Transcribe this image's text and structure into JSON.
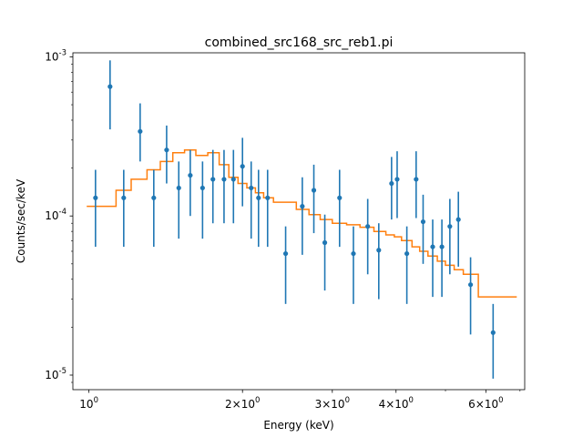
{
  "chart_data": {
    "type": "scatter",
    "title": "combined_src168_src_reb1.pi",
    "xlabel": "Energy (keV)",
    "ylabel": "Counts/sec/keV",
    "xscale": "log",
    "yscale": "log",
    "xlim": [
      0.93,
      7.15
    ],
    "ylim": [
      8.1e-06,
      0.00106
    ],
    "grid": false,
    "x_ticks": [
      {
        "value": 1,
        "label": "10^0"
      },
      {
        "value": 2,
        "label": "2×10^0"
      },
      {
        "value": 3,
        "label": "3×10^0"
      },
      {
        "value": 4,
        "label": "4×10^0"
      },
      {
        "value": 6,
        "label": "6×10^0"
      }
    ],
    "y_ticks": [
      {
        "value": 1e-05,
        "label": "10^-5"
      },
      {
        "value": 0.0001,
        "label": "10^-4"
      },
      {
        "value": 0.001,
        "label": "10^-3"
      }
    ],
    "colors": {
      "data": "#1f77b4",
      "model": "#ff7f0e"
    },
    "series": [
      {
        "kind": "errorbar",
        "x": [
          1.03,
          1.1,
          1.17,
          1.26,
          1.34,
          1.42,
          1.5,
          1.58,
          1.67,
          1.75,
          1.84,
          1.92,
          2.0,
          2.08,
          2.15,
          2.24,
          2.43,
          2.62,
          2.76,
          2.9,
          3.1,
          3.3,
          3.52,
          3.7,
          3.92,
          4.02,
          4.2,
          4.38,
          4.52,
          4.72,
          4.92,
          5.1,
          5.3,
          5.6,
          6.2
        ],
        "y": [
          0.00013,
          0.00065,
          0.00013,
          0.00034,
          0.00013,
          0.00026,
          0.00015,
          0.00018,
          0.00015,
          0.00017,
          0.00017,
          0.00017,
          0.000205,
          0.00015,
          0.00013,
          0.00013,
          5.8e-05,
          0.000115,
          0.000145,
          6.8e-05,
          0.00013,
          5.8e-05,
          8.6e-05,
          6.1e-05,
          0.00016,
          0.00017,
          5.8e-05,
          0.00017,
          9.2e-05,
          6.4e-05,
          6.4e-05,
          8.6e-05,
          9.5e-05,
          3.7e-05,
          1.85e-05
        ],
        "ylo": [
          6.4e-05,
          0.00035,
          6.4e-05,
          0.00022,
          6.4e-05,
          0.00016,
          7.2e-05,
          0.0001,
          7.2e-05,
          9e-05,
          9e-05,
          9e-05,
          0.000115,
          7.2e-05,
          6.4e-05,
          6.4e-05,
          2.8e-05,
          5.7e-05,
          7.8e-05,
          3.4e-05,
          6.4e-05,
          2.8e-05,
          4.3e-05,
          3e-05,
          9.5e-05,
          9.7e-05,
          2.8e-05,
          9.7e-05,
          5e-05,
          3.1e-05,
          3.1e-05,
          4.3e-05,
          4.8e-05,
          1.8e-05,
          9.5e-06
        ],
        "yhi": [
          0.000195,
          0.00095,
          0.000195,
          0.00051,
          0.000195,
          0.00037,
          0.00022,
          0.00026,
          0.00022,
          0.00026,
          0.00026,
          0.00026,
          0.00031,
          0.00022,
          0.000195,
          0.000195,
          8.6e-05,
          0.000175,
          0.00021,
          0.000102,
          0.000195,
          8.6e-05,
          0.000128,
          9e-05,
          0.000235,
          0.000255,
          8.6e-05,
          0.000255,
          0.000136,
          9.5e-05,
          9.5e-05,
          0.000128,
          0.000142,
          5.5e-05,
          2.8e-05
        ]
      },
      {
        "kind": "step",
        "x": [
          0.99,
          1.07,
          1.13,
          1.21,
          1.3,
          1.38,
          1.46,
          1.54,
          1.62,
          1.71,
          1.8,
          1.88,
          1.96,
          2.04,
          2.12,
          2.2,
          2.3,
          2.55,
          2.7,
          2.84,
          3.0,
          3.2,
          3.4,
          3.62,
          3.82,
          3.97,
          4.1,
          4.3,
          4.45,
          4.62,
          4.82,
          5.0,
          5.2,
          5.42,
          5.8,
          6.9
        ],
        "y": [
          0.000115,
          0.000115,
          0.000145,
          0.00017,
          0.000195,
          0.00022,
          0.00025,
          0.00026,
          0.00024,
          0.00025,
          0.00021,
          0.000175,
          0.00016,
          0.00015,
          0.00014,
          0.00013,
          0.000122,
          0.00011,
          0.000102,
          9.5e-05,
          9e-05,
          8.8e-05,
          8.5e-05,
          8e-05,
          7.6e-05,
          7.4e-05,
          7e-05,
          6.4e-05,
          6e-05,
          5.6e-05,
          5.2e-05,
          4.9e-05,
          4.6e-05,
          4.3e-05,
          3.1e-05,
          3.1e-05
        ]
      }
    ]
  }
}
